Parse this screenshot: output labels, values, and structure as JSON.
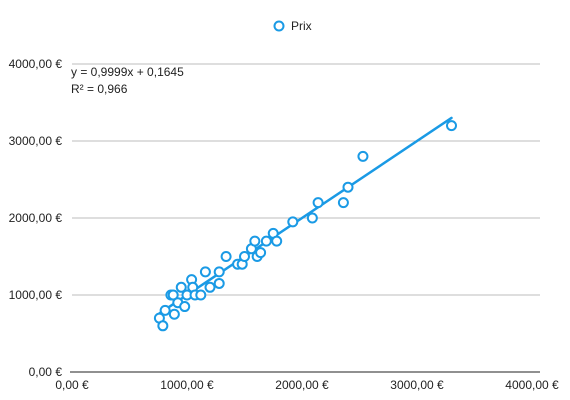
{
  "chart_data": {
    "type": "scatter",
    "title": "",
    "xlabel": "",
    "ylabel": "",
    "xlim": [
      0,
      4000
    ],
    "ylim": [
      0,
      4000
    ],
    "x_ticks": [
      0,
      1000,
      2000,
      3000,
      4000
    ],
    "y_ticks": [
      0,
      1000,
      2000,
      3000,
      4000
    ],
    "x_tick_labels": [
      "0,00 €",
      "1000,00 €",
      "2000,00 €",
      "3000,00 €",
      "4000,00 €"
    ],
    "y_tick_labels": [
      "0,00 €",
      "1000,00 €",
      "2000,00 €",
      "3000,00 €",
      "4000,00 €"
    ],
    "grid": "horizontal",
    "legend_position": "top-center",
    "series": [
      {
        "name": "Prix",
        "color": "#1a9ae5",
        "points": [
          [
            760,
            700
          ],
          [
            790,
            600
          ],
          [
            810,
            800
          ],
          [
            860,
            1000
          ],
          [
            880,
            1000
          ],
          [
            890,
            750
          ],
          [
            920,
            900
          ],
          [
            950,
            1100
          ],
          [
            980,
            850
          ],
          [
            1000,
            1000
          ],
          [
            1040,
            1200
          ],
          [
            1050,
            1100
          ],
          [
            1070,
            1000
          ],
          [
            1120,
            1000
          ],
          [
            1160,
            1300
          ],
          [
            1200,
            1100
          ],
          [
            1280,
            1300
          ],
          [
            1280,
            1150
          ],
          [
            1340,
            1500
          ],
          [
            1440,
            1400
          ],
          [
            1480,
            1400
          ],
          [
            1500,
            1500
          ],
          [
            1560,
            1600
          ],
          [
            1590,
            1700
          ],
          [
            1610,
            1500
          ],
          [
            1640,
            1550
          ],
          [
            1690,
            1700
          ],
          [
            1750,
            1800
          ],
          [
            1780,
            1700
          ],
          [
            1920,
            1950
          ],
          [
            2090,
            2000
          ],
          [
            2140,
            2200
          ],
          [
            2360,
            2200
          ],
          [
            2400,
            2400
          ],
          [
            2530,
            2800
          ],
          [
            3300,
            3200
          ]
        ]
      }
    ],
    "trendline": {
      "type": "linear",
      "x_range": [
        760,
        3300
      ],
      "equation": "y = 0,9999x + 0,1645",
      "r_squared": "R² = 0,966"
    }
  }
}
